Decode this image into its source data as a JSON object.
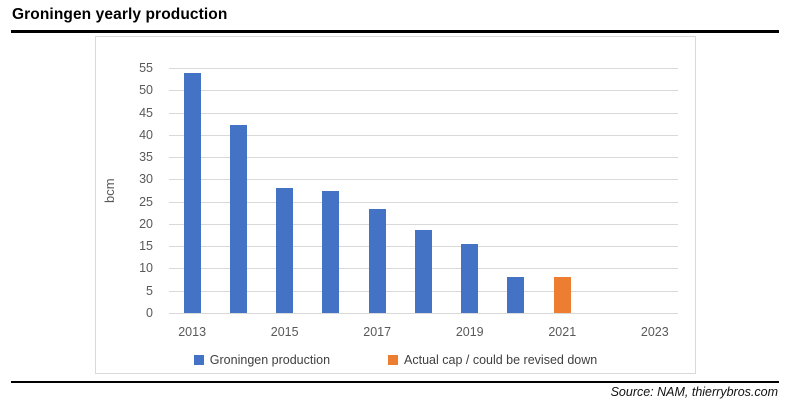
{
  "header": {
    "title": "Groningen yearly production"
  },
  "source_note": "Source: NAM, thierrybros.com",
  "chart_data": {
    "type": "bar",
    "title": "Groningen yearly production",
    "xlabel": "",
    "ylabel": "bcm",
    "ylim": [
      0,
      55
    ],
    "yticks": [
      0,
      5,
      10,
      15,
      20,
      25,
      30,
      35,
      40,
      45,
      50,
      55
    ],
    "grid": true,
    "legend_position": "bottom",
    "categories": [
      "2013",
      "2014",
      "2015",
      "2016",
      "2017",
      "2018",
      "2019",
      "2020",
      "2021",
      "2022",
      "2023"
    ],
    "xtick_labels": [
      "2013",
      "2015",
      "2017",
      "2019",
      "2021",
      "2023"
    ],
    "series": [
      {
        "name": "Groningen production",
        "color": "#4472C4",
        "values": [
          53.9,
          42.3,
          28,
          27.3,
          23.4,
          18.6,
          15.4,
          8,
          null,
          null,
          null
        ]
      },
      {
        "name": "Actual cap / could be revised down",
        "color": "#ED7D31",
        "values": [
          null,
          null,
          null,
          null,
          null,
          null,
          null,
          null,
          8,
          null,
          null
        ]
      }
    ],
    "colors": {
      "grid": "#D9D9D9",
      "axis_text": "#595959",
      "frame_border": "#D9D9D9",
      "title_text": "#000000"
    }
  }
}
